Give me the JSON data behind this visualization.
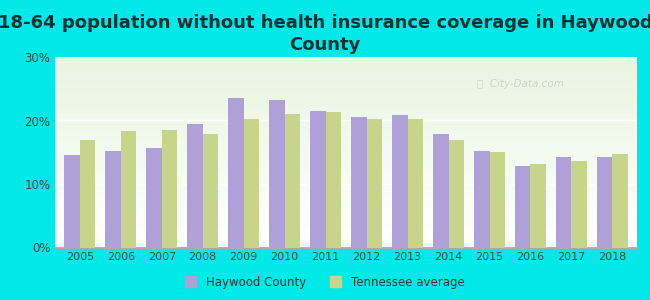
{
  "title": "18-64 population without health insurance coverage in Haywood\nCounty",
  "years": [
    2005,
    2006,
    2007,
    2008,
    2009,
    2010,
    2011,
    2012,
    2013,
    2014,
    2015,
    2016,
    2017,
    2018
  ],
  "haywood": [
    14.5,
    15.2,
    15.7,
    19.5,
    23.5,
    23.2,
    21.5,
    20.5,
    20.8,
    17.8,
    15.2,
    12.8,
    14.2,
    14.3
  ],
  "tennessee": [
    17.0,
    18.3,
    18.5,
    17.8,
    20.3,
    21.0,
    21.3,
    20.3,
    20.2,
    17.0,
    15.0,
    13.2,
    13.7,
    14.8
  ],
  "haywood_color": "#b0a0d8",
  "tennessee_color": "#c8d48a",
  "background_outer": "#00e8e8",
  "ylim": [
    0,
    30
  ],
  "yticks": [
    0,
    10,
    20,
    30
  ],
  "ytick_labels": [
    "0%",
    "10%",
    "20%",
    "30%"
  ],
  "title_fontsize": 13,
  "bar_width": 0.38,
  "legend_haywood": "Haywood County",
  "legend_tennessee": "Tennessee average"
}
